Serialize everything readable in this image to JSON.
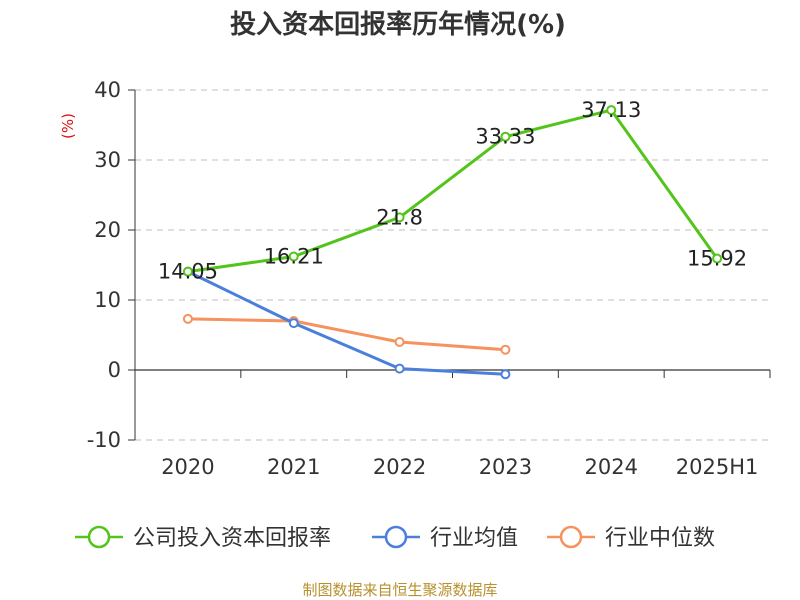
{
  "chart_data": {
    "type": "line",
    "title": "投入资本回报率历年情况(%)",
    "ylabel": "(%)",
    "categories": [
      "2020",
      "2021",
      "2022",
      "2023",
      "2024",
      "2025H1"
    ],
    "ylim": [
      -10,
      40
    ],
    "yticks": [
      40,
      30,
      20,
      10,
      0,
      -10
    ],
    "grid": true,
    "legend_position": "bottom",
    "series": [
      {
        "name": "公司投入资本回报率",
        "color": "#52c41a",
        "values": [
          14.05,
          16.21,
          21.8,
          33.33,
          37.13,
          15.92
        ],
        "labels": true
      },
      {
        "name": "行业均值",
        "color": "#4a7fdc",
        "values": [
          14.05,
          6.7,
          0.2,
          -0.6,
          null,
          null
        ],
        "labels": false
      },
      {
        "name": "行业中位数",
        "color": "#f5925d",
        "values": [
          7.3,
          7.0,
          4.0,
          2.9,
          null,
          null
        ],
        "labels": false
      }
    ],
    "source": "制图数据来自恒生聚源数据库"
  }
}
